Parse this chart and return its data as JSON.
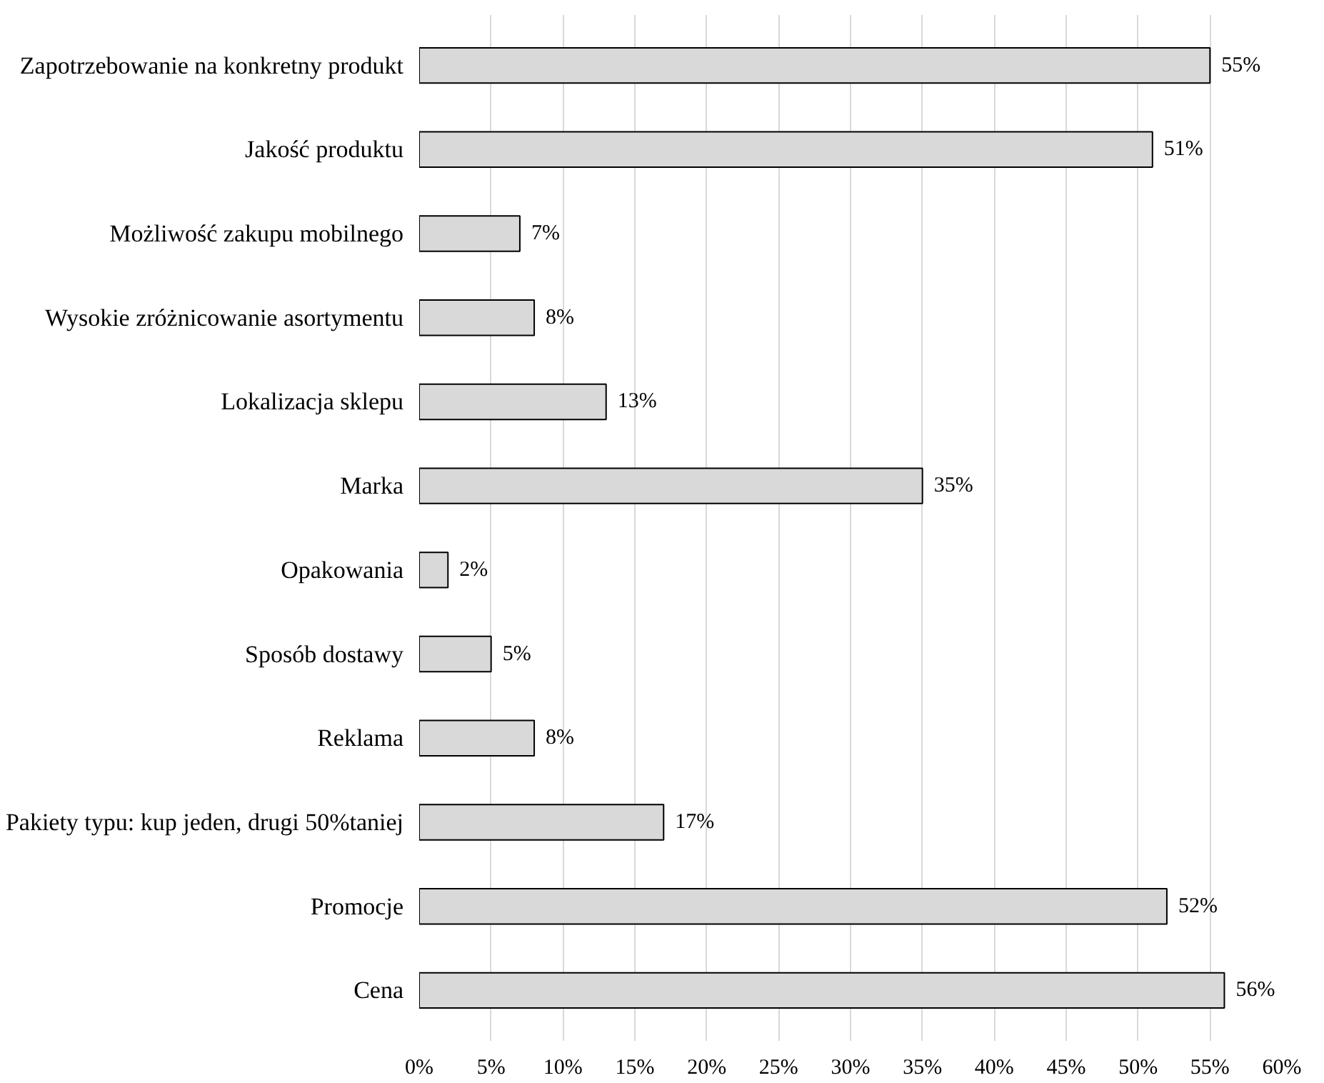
{
  "chart_data": {
    "type": "bar",
    "orientation": "horizontal",
    "categories": [
      "Zapotrzebowanie na konkretny produkt",
      "Jakość produktu",
      "Możliwość zakupu mobilnego",
      "Wysokie zróżnicowanie asortymentu",
      "Lokalizacja sklepu",
      "Marka",
      "Opakowania",
      "Sposób dostawy",
      "Reklama",
      "Pakiety typu: kup jeden, drugi 50%taniej",
      "Promocje",
      "Cena"
    ],
    "values": [
      55,
      51,
      7,
      8,
      13,
      35,
      2,
      5,
      8,
      17,
      52,
      56
    ],
    "value_labels": [
      "55%",
      "51%",
      "7%",
      "8%",
      "13%",
      "35%",
      "2%",
      "5%",
      "8%",
      "17%",
      "52%",
      "56%"
    ],
    "color": "#d9d9d9",
    "xlim": [
      0,
      60
    ],
    "xticks": [
      {
        "value": 0,
        "label": "0%"
      },
      {
        "value": 5,
        "label": "5%"
      },
      {
        "value": 10,
        "label": "10%"
      },
      {
        "value": 15,
        "label": "15%"
      },
      {
        "value": 20,
        "label": "20%"
      },
      {
        "value": 25,
        "label": "25%"
      },
      {
        "value": 30,
        "label": "30%"
      },
      {
        "value": 35,
        "label": "35%"
      },
      {
        "value": 40,
        "label": "40%"
      },
      {
        "value": 45,
        "label": "45%"
      },
      {
        "value": 50,
        "label": "50%"
      },
      {
        "value": 55,
        "label": "55%"
      },
      {
        "value": 60,
        "label": "60%"
      }
    ],
    "grid": "x"
  }
}
